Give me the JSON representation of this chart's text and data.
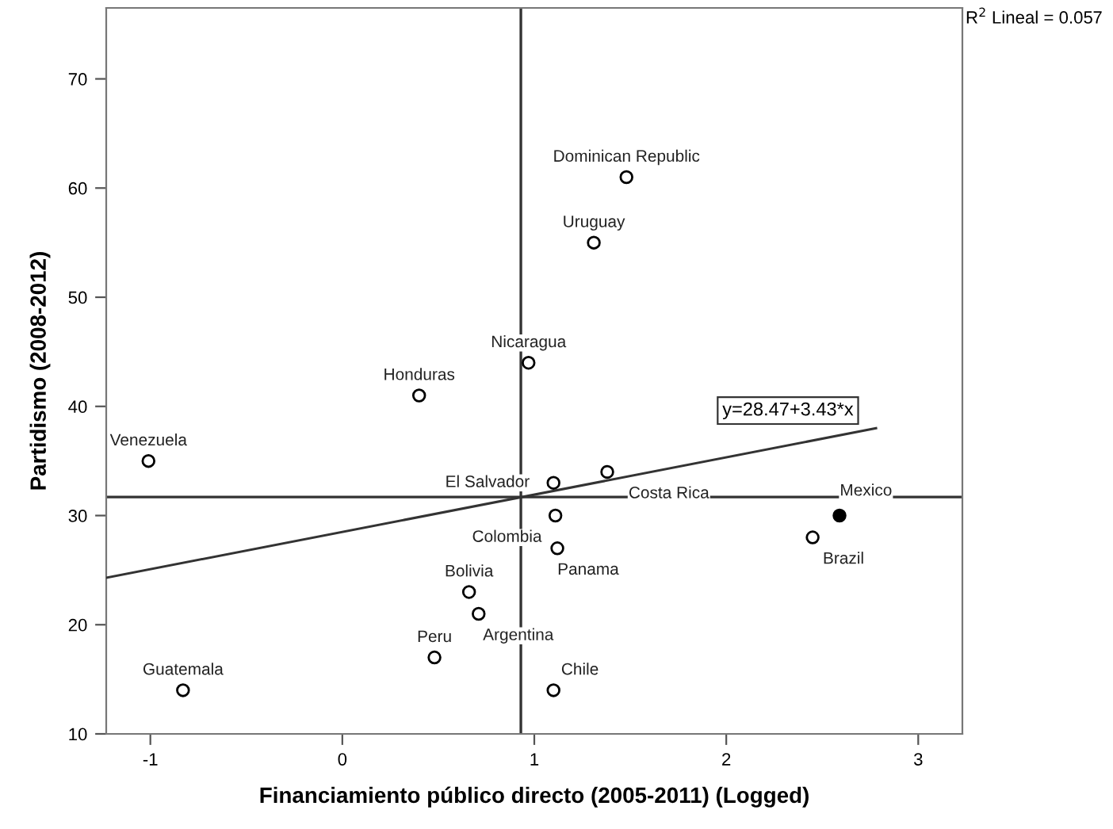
{
  "chart_data": {
    "type": "scatter",
    "xlabel": "Financiamiento público directo (2005-2011) (Logged)",
    "ylabel": "Partidismo (2008-2012)",
    "xlim": [
      -1.23,
      3.23
    ],
    "ylim": [
      10,
      76.5
    ],
    "xticks": [
      -1,
      0,
      1,
      2,
      3
    ],
    "yticks": [
      10,
      20,
      30,
      40,
      50,
      60,
      70
    ],
    "grid": false,
    "series": [
      {
        "marker": "circle",
        "color": "#ffffff",
        "x": [
          -1.01,
          -0.83,
          0.4,
          0.97,
          1.1,
          1.11,
          1.12,
          0.66,
          0.71,
          0.48,
          1.1,
          1.38,
          1.48,
          1.31,
          2.45
        ],
        "values": [
          35,
          14,
          41,
          44,
          33,
          30,
          27,
          23,
          21,
          17,
          14,
          34,
          61,
          55,
          28
        ],
        "value_labels": [
          "Venezuela",
          "Guatemala",
          "Honduras",
          "Nicaragua",
          "El Salvador",
          "Colombia",
          "Panama",
          "Bolivia",
          "Argentina",
          "Peru",
          "Chile",
          "Costa Rica",
          "Dominican Republic",
          "Uruguay",
          "Brazil"
        ]
      },
      {
        "marker": "circle",
        "color": "#000000",
        "x": [
          2.59
        ],
        "values": [
          30
        ],
        "value_labels": [
          "Mexico"
        ]
      },
      {
        "type": "line",
        "color": "#333333",
        "x": [
          -1.23,
          2.78
        ],
        "values": [
          24.3,
          38.0
        ]
      }
    ],
    "ref_lines": [
      {
        "axis": "x",
        "value": 0.93,
        "color": "#333333"
      },
      {
        "axis": "y",
        "value": 31.7,
        "color": "#333333"
      }
    ],
    "annotations": [
      {
        "text": "y=28.47+3.43*x",
        "x": 2.78,
        "y": 38.0
      },
      "R$^{2}$ Lineal = 0.057"
    ]
  }
}
